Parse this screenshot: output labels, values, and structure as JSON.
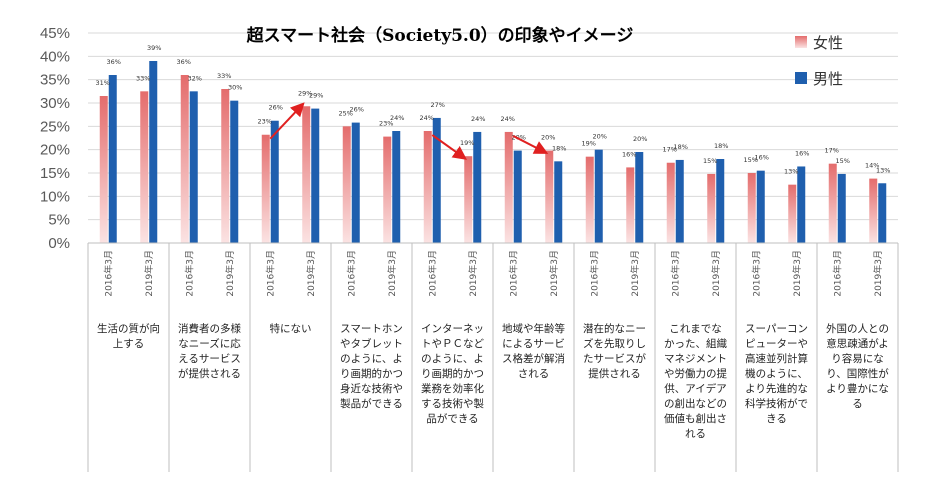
{
  "chart_data": {
    "type": "bar",
    "title": "超スマート社会（Society5.0）の印象やイメージ",
    "y_ticks": [
      "0%",
      "5%",
      "10%",
      "15%",
      "20%",
      "25%",
      "30%",
      "35%",
      "40%",
      "45%"
    ],
    "ylim": [
      0,
      45
    ],
    "grid": true,
    "legend_position": "top-right",
    "periods": [
      "2016年3月",
      "2019年3月"
    ],
    "series": [
      {
        "name": "女性",
        "color": "#e46c6c",
        "color_light": "#fbe3e3"
      },
      {
        "name": "男性",
        "color": "#1f5fae"
      }
    ],
    "categories": [
      {
        "lines": [
          "生活の質が向",
          "上する"
        ],
        "pairs": [
          [
            31.5,
            36.0
          ],
          [
            32.5,
            39.0
          ]
        ],
        "labels": [
          [
            "31%",
            "36%"
          ],
          [
            "33%",
            "39%"
          ]
        ]
      },
      {
        "lines": [
          "消費者の多様",
          "なニーズに応",
          "えるサービス",
          "が提供される"
        ],
        "pairs": [
          [
            36.0,
            32.5
          ],
          [
            33.0,
            30.5
          ]
        ],
        "labels": [
          [
            "36%",
            "32%"
          ],
          [
            "33%",
            "30%"
          ]
        ]
      },
      {
        "lines": [
          "特にない"
        ],
        "pairs": [
          [
            23.2,
            26.2
          ],
          [
            29.3,
            28.8
          ]
        ],
        "labels": [
          [
            "23%",
            "26%"
          ],
          [
            "29%",
            "29%"
          ]
        ]
      },
      {
        "lines": [
          "スマートホン",
          "やタブレット",
          "のように、よ",
          "り画期的かつ",
          "身近な技術や",
          "製品ができる"
        ],
        "pairs": [
          [
            25.0,
            25.8
          ],
          [
            22.8,
            24.0
          ]
        ],
        "labels": [
          [
            "25%",
            "26%"
          ],
          [
            "23%",
            "24%"
          ]
        ]
      },
      {
        "lines": [
          "インターネッ",
          "トやＰＣなど",
          "のように、よ",
          "り画期的かつ",
          "業務を効率化",
          "する技術や製",
          "品ができる"
        ],
        "pairs": [
          [
            24.0,
            26.8
          ],
          [
            18.6,
            23.8
          ]
        ],
        "labels": [
          [
            "24%",
            "27%"
          ],
          [
            "19%",
            "24%"
          ]
        ]
      },
      {
        "lines": [
          "地域や年齢等",
          "によるサービ",
          "ス格差が解消",
          "される"
        ],
        "pairs": [
          [
            23.8,
            19.8
          ],
          [
            19.8,
            17.5
          ]
        ],
        "labels": [
          [
            "24%",
            "20%"
          ],
          [
            "20%",
            "18%"
          ]
        ]
      },
      {
        "lines": [
          "潜在的なニー",
          "ズを先取りし",
          "たサービスが",
          "提供される"
        ],
        "pairs": [
          [
            18.5,
            20.0
          ],
          [
            16.2,
            19.5
          ]
        ],
        "labels": [
          [
            "19%",
            "20%"
          ],
          [
            "16%",
            "20%"
          ]
        ]
      },
      {
        "lines": [
          "これまでな",
          "かった、組織",
          "マネジメント",
          "や労働力の提",
          "供、アイデア",
          "の創出などの",
          "価値も創出さ",
          "れる"
        ],
        "pairs": [
          [
            17.2,
            17.8
          ],
          [
            14.8,
            18.0
          ]
        ],
        "labels": [
          [
            "17%",
            "18%"
          ],
          [
            "15%",
            "18%"
          ]
        ]
      },
      {
        "lines": [
          "スーパーコン",
          "ピューターや",
          "高速並列計算",
          "機のように、",
          "より先進的な",
          "科学技術がで",
          "きる"
        ],
        "pairs": [
          [
            15.0,
            15.5
          ],
          [
            12.5,
            16.4
          ]
        ],
        "labels": [
          [
            "15%",
            "16%"
          ],
          [
            "13%",
            "16%"
          ]
        ]
      },
      {
        "lines": [
          "外国の人との",
          "意思疎通がよ",
          "り容易にな",
          "り、国際性が",
          "より豊かにな",
          "る"
        ],
        "pairs": [
          [
            17.0,
            14.8
          ],
          [
            13.8,
            12.8
          ]
        ],
        "labels": [
          [
            "17%",
            "15%"
          ],
          [
            "14%",
            "13%"
          ]
        ]
      }
    ],
    "annotations": [
      {
        "type": "arrow",
        "from": {
          "category": 2,
          "period": 0,
          "value": 23.2
        },
        "to": {
          "category": 2,
          "period": 1,
          "value": 29.3
        },
        "color": "#e02020"
      },
      {
        "type": "arrow",
        "from": {
          "category": 4,
          "period": 0,
          "value": 24.0
        },
        "to": {
          "category": 4,
          "period": 1,
          "value": 18.6
        },
        "color": "#e02020"
      },
      {
        "type": "arrow",
        "from": {
          "category": 5,
          "period": 0,
          "value": 23.8
        },
        "to": {
          "category": 5,
          "period": 1,
          "value": 19.8
        },
        "color": "#e02020"
      }
    ]
  }
}
